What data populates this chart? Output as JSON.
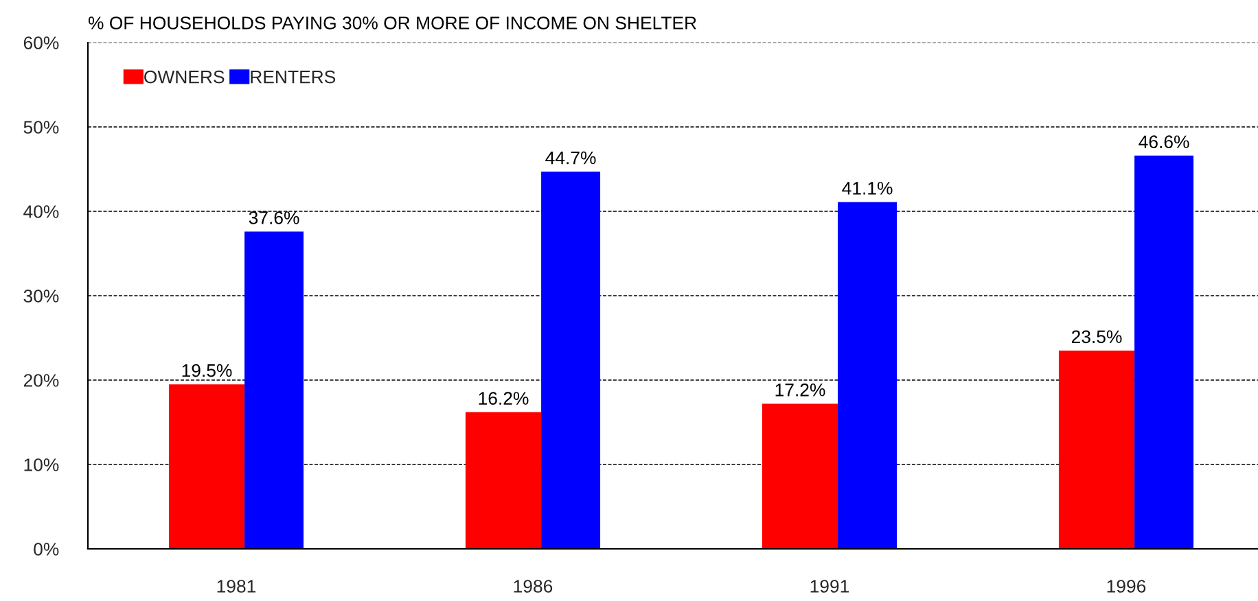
{
  "chart_data": {
    "type": "bar",
    "title": "% OF HOUSEHOLDS PAYING 30% OR MORE OF INCOME ON SHELTER",
    "categories": [
      "1981",
      "1986",
      "1991",
      "1996"
    ],
    "series": [
      {
        "name": "OWNERS",
        "color": "#ff0000",
        "values": [
          19.5,
          16.2,
          17.2,
          23.5
        ],
        "value_labels": [
          "19.5%",
          "16.2%",
          "17.2%",
          "23.5%"
        ]
      },
      {
        "name": "RENTERS",
        "color": "#0000ff",
        "values": [
          37.6,
          44.7,
          41.1,
          46.6
        ],
        "value_labels": [
          "37.6%",
          "44.7%",
          "41.1%",
          "46.6%"
        ]
      }
    ],
    "ylim": [
      0,
      60
    ],
    "yticks": [
      {
        "value": 0,
        "label": "0%"
      },
      {
        "value": 10,
        "label": "10%"
      },
      {
        "value": 20,
        "label": "20%"
      },
      {
        "value": 30,
        "label": "30%"
      },
      {
        "value": 40,
        "label": "40%"
      },
      {
        "value": 50,
        "label": "50%"
      },
      {
        "value": 60,
        "label": "60%"
      }
    ],
    "grid": "y",
    "legend": "top left"
  }
}
